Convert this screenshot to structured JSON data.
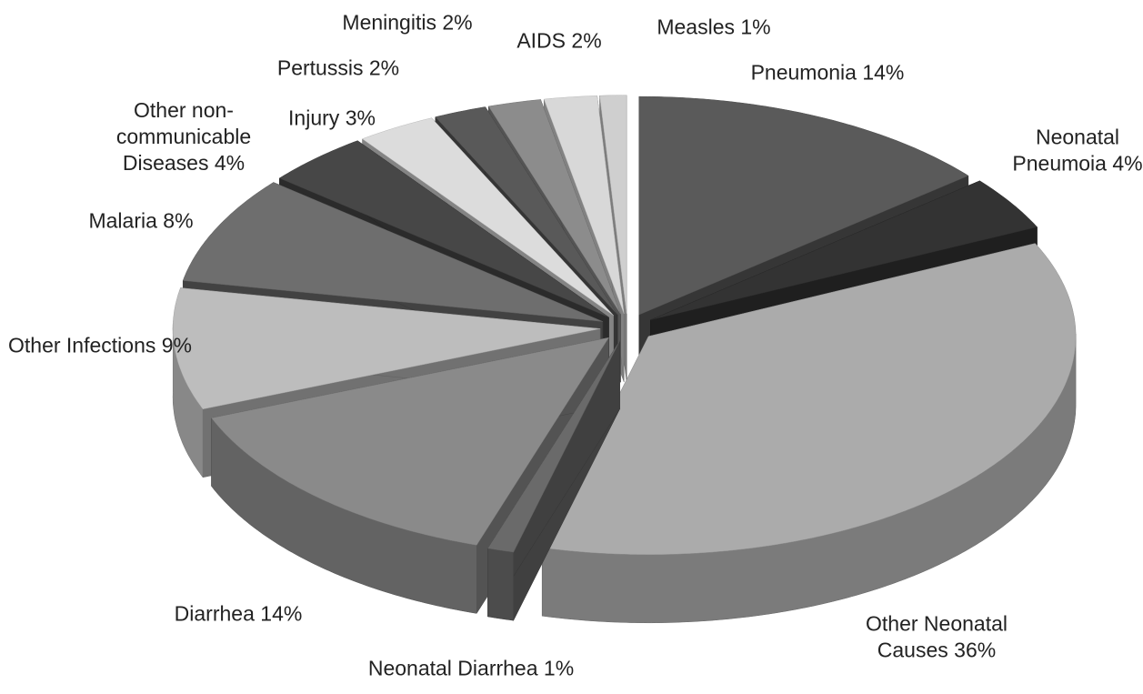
{
  "chart_data": {
    "type": "pie3d",
    "categories": [
      "Pneumonia",
      "Neonatal Pneumoia",
      "Other Neonatal Causes",
      "Neonatal Diarrhea",
      "Diarrhea",
      "Other Infections",
      "Malaria",
      "Other non-communicable Diseases",
      "Injury",
      "Pertussis",
      "Meningitis",
      "AIDS",
      "Measles"
    ],
    "values": [
      14,
      4,
      36,
      1,
      14,
      9,
      8,
      4,
      3,
      2,
      2,
      2,
      1
    ],
    "value_labels": [
      "14%",
      "4%",
      "36%",
      "1%",
      "14%",
      "9%",
      "8%",
      "4%",
      "3%",
      "2%",
      "2%",
      "2%",
      "1%"
    ],
    "colors": [
      "#5a5a5a",
      "#333333",
      "#ababab",
      "#6a6a6a",
      "#8a8a8a",
      "#bdbdbd",
      "#6e6e6e",
      "#474747",
      "#dcdcdc",
      "#595959",
      "#8c8c8c",
      "#d8d8d8",
      "#cfcfcf"
    ]
  }
}
